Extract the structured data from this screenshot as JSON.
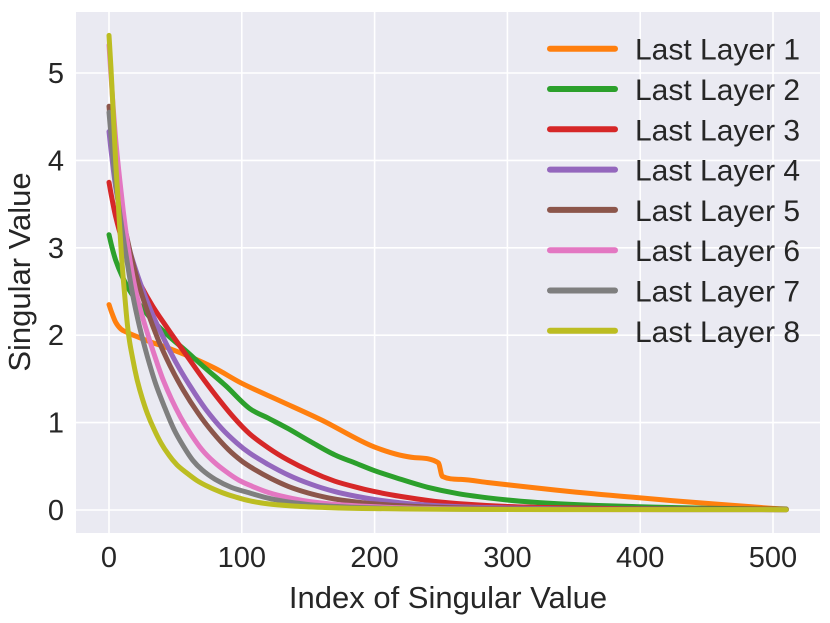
{
  "figure": {
    "background": "#ffffff",
    "plot_background": "#eaeaf2",
    "grid_color": "#ffffff",
    "text_color": "#262626"
  },
  "chart_data": {
    "type": "line",
    "title": "",
    "xlabel": "Index of Singular Value",
    "ylabel": "Singular Value",
    "xlim": [
      -25,
      536
    ],
    "ylim": [
      -0.27,
      5.7
    ],
    "x_ticks": [
      0,
      100,
      200,
      300,
      400,
      500
    ],
    "y_ticks": [
      0,
      1,
      2,
      3,
      4,
      5
    ],
    "grid": true,
    "legend_position": "upper right",
    "legend_frame": false,
    "series": [
      {
        "name": "Last Layer 1",
        "color": "#ff7f0e",
        "points": [
          [
            0,
            2.35
          ],
          [
            2,
            2.26
          ],
          [
            5,
            2.15
          ],
          [
            9,
            2.07
          ],
          [
            14,
            2.03
          ],
          [
            20,
            1.99
          ],
          [
            30,
            1.93
          ],
          [
            45,
            1.85
          ],
          [
            60,
            1.76
          ],
          [
            80,
            1.62
          ],
          [
            100,
            1.45
          ],
          [
            130,
            1.24
          ],
          [
            160,
            1.03
          ],
          [
            200,
            0.72
          ],
          [
            230,
            0.6
          ],
          [
            248,
            0.54
          ],
          [
            251,
            0.385
          ],
          [
            265,
            0.35
          ],
          [
            285,
            0.315
          ],
          [
            305,
            0.28
          ],
          [
            335,
            0.23
          ],
          [
            365,
            0.185
          ],
          [
            395,
            0.145
          ],
          [
            425,
            0.105
          ],
          [
            455,
            0.07
          ],
          [
            485,
            0.035
          ],
          [
            505,
            0.015
          ],
          [
            510,
            0.012
          ]
        ]
      },
      {
        "name": "Last Layer 2",
        "color": "#2ca02c",
        "points": [
          [
            0,
            3.15
          ],
          [
            2,
            3.02
          ],
          [
            5,
            2.86
          ],
          [
            10,
            2.67
          ],
          [
            16,
            2.5
          ],
          [
            24,
            2.33
          ],
          [
            34,
            2.15
          ],
          [
            45,
            1.99
          ],
          [
            58,
            1.82
          ],
          [
            72,
            1.63
          ],
          [
            88,
            1.42
          ],
          [
            106,
            1.16
          ],
          [
            120,
            1.05
          ],
          [
            135,
            0.93
          ],
          [
            152,
            0.78
          ],
          [
            170,
            0.63
          ],
          [
            185,
            0.54
          ],
          [
            200,
            0.45
          ],
          [
            220,
            0.35
          ],
          [
            240,
            0.26
          ],
          [
            262,
            0.19
          ],
          [
            285,
            0.14
          ],
          [
            310,
            0.1
          ],
          [
            340,
            0.07
          ],
          [
            375,
            0.048
          ],
          [
            410,
            0.033
          ],
          [
            450,
            0.02
          ],
          [
            490,
            0.012
          ],
          [
            510,
            0.01
          ]
        ]
      },
      {
        "name": "Last Layer 3",
        "color": "#d62728",
        "points": [
          [
            0,
            3.75
          ],
          [
            2,
            3.58
          ],
          [
            5,
            3.36
          ],
          [
            10,
            3.08
          ],
          [
            16,
            2.83
          ],
          [
            24,
            2.57
          ],
          [
            33,
            2.33
          ],
          [
            44,
            2.08
          ],
          [
            56,
            1.82
          ],
          [
            70,
            1.52
          ],
          [
            84,
            1.24
          ],
          [
            95,
            1.04
          ],
          [
            106,
            0.87
          ],
          [
            120,
            0.71
          ],
          [
            135,
            0.57
          ],
          [
            152,
            0.44
          ],
          [
            170,
            0.33
          ],
          [
            185,
            0.265
          ],
          [
            200,
            0.21
          ],
          [
            220,
            0.155
          ],
          [
            245,
            0.1
          ],
          [
            270,
            0.065
          ],
          [
            300,
            0.04
          ],
          [
            340,
            0.025
          ],
          [
            390,
            0.015
          ],
          [
            450,
            0.01
          ],
          [
            510,
            0.007
          ]
        ]
      },
      {
        "name": "Last Layer 4",
        "color": "#9467bd",
        "points": [
          [
            0,
            4.33
          ],
          [
            2,
            4.05
          ],
          [
            5,
            3.7
          ],
          [
            10,
            3.3
          ],
          [
            16,
            2.95
          ],
          [
            23,
            2.62
          ],
          [
            31,
            2.3
          ],
          [
            40,
            2.0
          ],
          [
            50,
            1.7
          ],
          [
            61,
            1.42
          ],
          [
            73,
            1.15
          ],
          [
            85,
            0.93
          ],
          [
            96,
            0.77
          ],
          [
            106,
            0.65
          ],
          [
            120,
            0.52
          ],
          [
            135,
            0.4
          ],
          [
            152,
            0.295
          ],
          [
            170,
            0.21
          ],
          [
            185,
            0.16
          ],
          [
            200,
            0.12
          ],
          [
            220,
            0.082
          ],
          [
            245,
            0.052
          ],
          [
            275,
            0.032
          ],
          [
            310,
            0.02
          ],
          [
            360,
            0.012
          ],
          [
            430,
            0.008
          ],
          [
            510,
            0.006
          ]
        ]
      },
      {
        "name": "Last Layer 5",
        "color": "#8c564b",
        "points": [
          [
            0,
            4.62
          ],
          [
            2,
            4.28
          ],
          [
            5,
            3.85
          ],
          [
            10,
            3.38
          ],
          [
            16,
            2.95
          ],
          [
            22,
            2.6
          ],
          [
            29,
            2.27
          ],
          [
            37,
            1.95
          ],
          [
            46,
            1.65
          ],
          [
            56,
            1.37
          ],
          [
            67,
            1.11
          ],
          [
            78,
            0.89
          ],
          [
            90,
            0.69
          ],
          [
            100,
            0.56
          ],
          [
            110,
            0.46
          ],
          [
            122,
            0.36
          ],
          [
            135,
            0.27
          ],
          [
            150,
            0.195
          ],
          [
            165,
            0.14
          ],
          [
            182,
            0.1
          ],
          [
            200,
            0.07
          ],
          [
            225,
            0.045
          ],
          [
            255,
            0.028
          ],
          [
            295,
            0.016
          ],
          [
            350,
            0.01
          ],
          [
            430,
            0.007
          ],
          [
            510,
            0.005
          ]
        ]
      },
      {
        "name": "Last Layer 6",
        "color": "#e377c2",
        "points": [
          [
            0,
            5.32
          ],
          [
            2,
            4.85
          ],
          [
            5,
            4.25
          ],
          [
            9,
            3.65
          ],
          [
            13,
            3.15
          ],
          [
            17,
            2.75
          ],
          [
            21,
            2.45
          ],
          [
            25,
            2.22
          ],
          [
            29,
            2.02
          ],
          [
            34,
            1.78
          ],
          [
            40,
            1.52
          ],
          [
            47,
            1.27
          ],
          [
            54,
            1.06
          ],
          [
            62,
            0.86
          ],
          [
            70,
            0.69
          ],
          [
            79,
            0.55
          ],
          [
            88,
            0.44
          ],
          [
            98,
            0.34
          ],
          [
            108,
            0.27
          ],
          [
            120,
            0.2
          ],
          [
            134,
            0.145
          ],
          [
            150,
            0.1
          ],
          [
            168,
            0.068
          ],
          [
            190,
            0.045
          ],
          [
            215,
            0.028
          ],
          [
            250,
            0.016
          ],
          [
            300,
            0.009
          ],
          [
            380,
            0.005
          ],
          [
            510,
            0.004
          ]
        ]
      },
      {
        "name": "Last Layer 7",
        "color": "#7f7f7f",
        "points": [
          [
            0,
            4.55
          ],
          [
            2,
            4.2
          ],
          [
            5,
            3.75
          ],
          [
            9,
            3.3
          ],
          [
            13,
            2.9
          ],
          [
            18,
            2.45
          ],
          [
            23,
            2.1
          ],
          [
            29,
            1.75
          ],
          [
            35,
            1.45
          ],
          [
            42,
            1.17
          ],
          [
            49,
            0.92
          ],
          [
            56,
            0.73
          ],
          [
            63,
            0.57
          ],
          [
            70,
            0.46
          ],
          [
            80,
            0.35
          ],
          [
            92,
            0.26
          ],
          [
            106,
            0.195
          ],
          [
            120,
            0.135
          ],
          [
            135,
            0.092
          ],
          [
            152,
            0.06
          ],
          [
            172,
            0.04
          ],
          [
            195,
            0.025
          ],
          [
            225,
            0.015
          ],
          [
            270,
            0.009
          ],
          [
            350,
            0.006
          ],
          [
            510,
            0.004
          ]
        ]
      },
      {
        "name": "Last Layer 8",
        "color": "#bcbd22",
        "points": [
          [
            0,
            5.43
          ],
          [
            1.5,
            5.05
          ],
          [
            3,
            4.6
          ],
          [
            5,
            4.0
          ],
          [
            7,
            3.5
          ],
          [
            9,
            3.0
          ],
          [
            11,
            2.6
          ],
          [
            13,
            2.25
          ],
          [
            15,
            1.98
          ],
          [
            18,
            1.72
          ],
          [
            21,
            1.5
          ],
          [
            25,
            1.28
          ],
          [
            29,
            1.1
          ],
          [
            34,
            0.92
          ],
          [
            39,
            0.77
          ],
          [
            45,
            0.63
          ],
          [
            51,
            0.52
          ],
          [
            58,
            0.43
          ],
          [
            66,
            0.34
          ],
          [
            75,
            0.265
          ],
          [
            85,
            0.2
          ],
          [
            95,
            0.15
          ],
          [
            106,
            0.105
          ],
          [
            120,
            0.07
          ],
          [
            140,
            0.045
          ],
          [
            165,
            0.028
          ],
          [
            200,
            0.016
          ],
          [
            250,
            0.009
          ],
          [
            340,
            0.005
          ],
          [
            510,
            0.004
          ]
        ]
      }
    ]
  }
}
